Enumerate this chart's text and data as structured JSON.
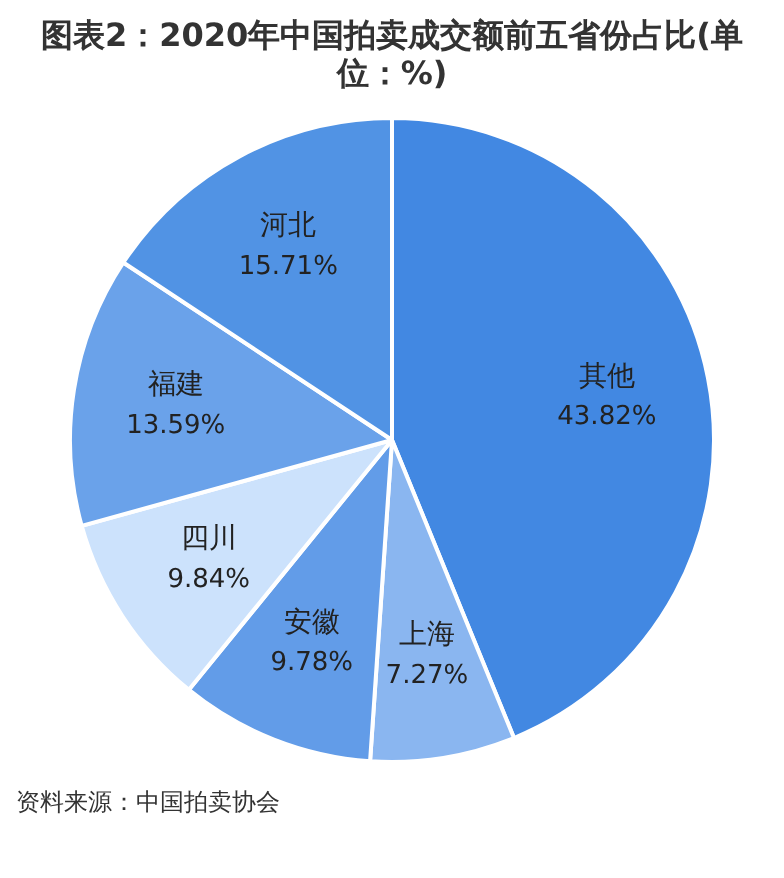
{
  "chart_data": {
    "type": "pie",
    "title": "图表2：2020年中国拍卖成交额前五省份占比(单位：%)",
    "categories": [
      "其他",
      "上海",
      "安徽",
      "四川",
      "福建",
      "河北"
    ],
    "values": [
      43.82,
      7.27,
      9.78,
      9.84,
      13.59,
      15.71
    ],
    "value_labels": [
      "43.82%",
      "7.27%",
      "9.78%",
      "9.84%",
      "13.59%",
      "15.71%"
    ],
    "colors": [
      "#4288e2",
      "#8ab6f0",
      "#629ce8",
      "#cce2fc",
      "#6aa2ea",
      "#5193e4"
    ],
    "legend": false,
    "annotations": [
      "资料来源：中国拍卖协会"
    ]
  }
}
